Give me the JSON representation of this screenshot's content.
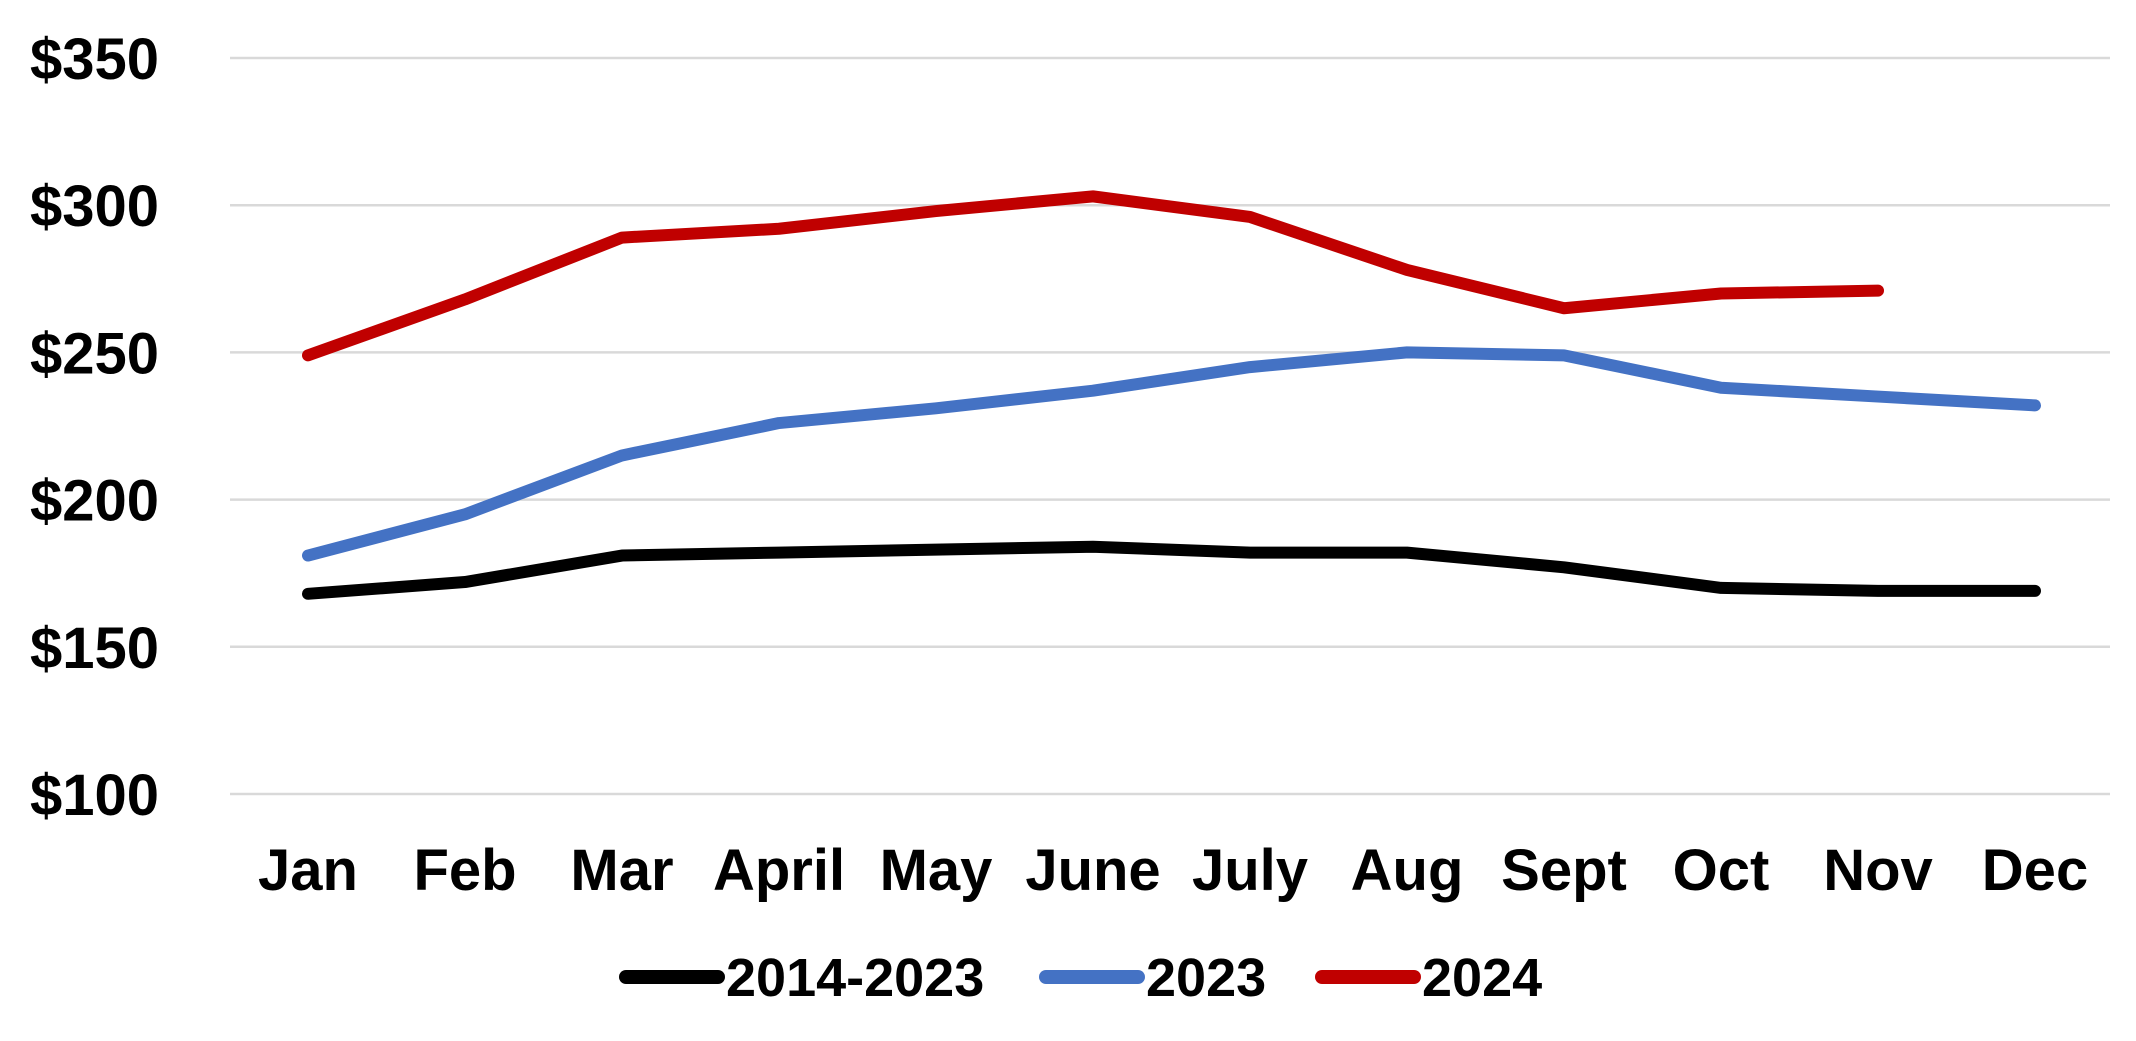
{
  "chart_data": {
    "type": "line",
    "title": "",
    "xlabel": "",
    "ylabel": "",
    "categories": [
      "Jan",
      "Feb",
      "Mar",
      "April",
      "May",
      "June",
      "July",
      "Aug",
      "Sept",
      "Oct",
      "Nov",
      "Dec"
    ],
    "y_ticks": [
      "$100",
      "$150",
      "$200",
      "$250",
      "$300",
      "$350"
    ],
    "ylim": [
      100,
      350
    ],
    "grid": true,
    "legend_position": "bottom",
    "series": [
      {
        "name": "2014-2023",
        "color": "#000000",
        "values": [
          168,
          172,
          181,
          182,
          183,
          184,
          182,
          182,
          177,
          170,
          169,
          169
        ]
      },
      {
        "name": "2023",
        "color": "#4472c4",
        "values": [
          181,
          195,
          215,
          226,
          231,
          237,
          245,
          250,
          249,
          238,
          235,
          232
        ]
      },
      {
        "name": "2024",
        "color": "#c00000",
        "values": [
          249,
          268,
          289,
          292,
          298,
          303,
          296,
          278,
          265,
          270,
          271,
          null
        ]
      }
    ]
  }
}
